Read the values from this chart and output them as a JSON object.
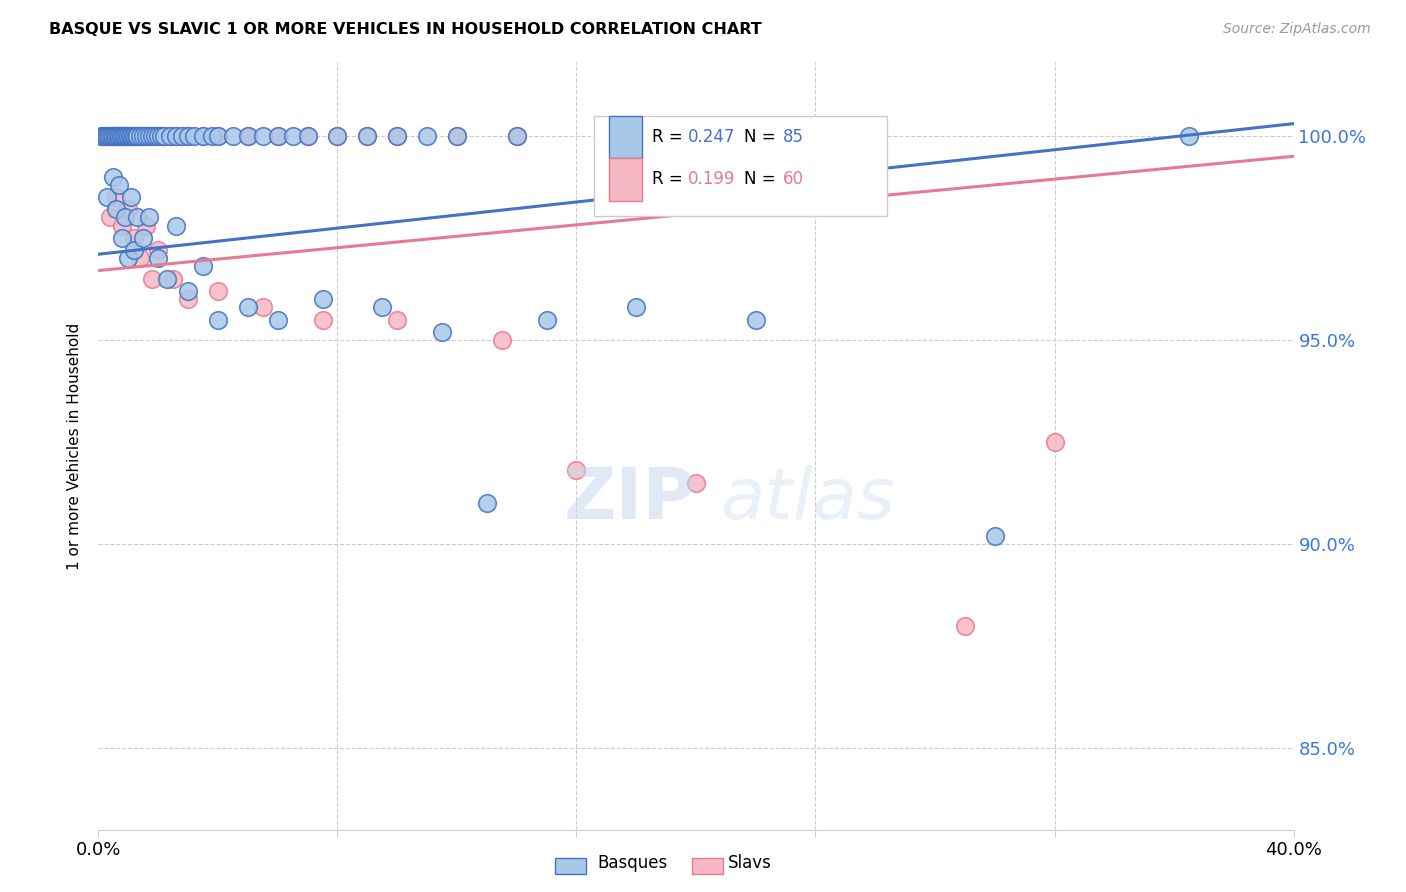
{
  "title": "BASQUE VS SLAVIC 1 OR MORE VEHICLES IN HOUSEHOLD CORRELATION CHART",
  "source": "Source: ZipAtlas.com",
  "ylabel": "1 or more Vehicles in Household",
  "ytick_vals": [
    85.0,
    90.0,
    95.0,
    100.0
  ],
  "xmin": 0.0,
  "xmax": 40.0,
  "ymin": 83.0,
  "ymax": 101.8,
  "legend_blue_r": "0.247",
  "legend_blue_n": "85",
  "legend_pink_r": "0.199",
  "legend_pink_n": "60",
  "blue_color": "#a8c8e8",
  "pink_color": "#f5b8c4",
  "line_blue": "#4472c4",
  "line_pink": "#e87a90",
  "blue_trend_x0": 0.0,
  "blue_trend_y0": 97.1,
  "blue_trend_x1": 40.0,
  "blue_trend_y1": 100.3,
  "pink_trend_x0": 0.0,
  "pink_trend_y0": 96.7,
  "pink_trend_x1": 40.0,
  "pink_trend_y1": 99.5,
  "basques_x": [
    0.1,
    0.15,
    0.2,
    0.25,
    0.3,
    0.35,
    0.4,
    0.45,
    0.5,
    0.55,
    0.6,
    0.65,
    0.7,
    0.75,
    0.8,
    0.85,
    0.9,
    0.95,
    1.0,
    1.05,
    1.1,
    1.15,
    1.2,
    1.25,
    1.3,
    1.4,
    1.5,
    1.6,
    1.7,
    1.8,
    1.9,
    2.0,
    2.1,
    2.2,
    2.4,
    2.6,
    2.8,
    3.0,
    3.2,
    3.5,
    3.8,
    4.0,
    4.5,
    5.0,
    5.5,
    6.0,
    6.5,
    7.0,
    8.0,
    9.0,
    10.0,
    11.0,
    12.0,
    14.0,
    20.0,
    25.0,
    36.5,
    0.3,
    0.5,
    0.6,
    0.7,
    0.8,
    0.9,
    1.0,
    1.1,
    1.2,
    1.3,
    1.5,
    1.7,
    2.0,
    2.3,
    2.6,
    3.0,
    3.5,
    4.0,
    5.0,
    6.0,
    7.5,
    9.5,
    11.5,
    13.0,
    15.0,
    18.0,
    22.0,
    30.0
  ],
  "basques_y": [
    100.0,
    100.0,
    100.0,
    100.0,
    100.0,
    100.0,
    100.0,
    100.0,
    100.0,
    100.0,
    100.0,
    100.0,
    100.0,
    100.0,
    100.0,
    100.0,
    100.0,
    100.0,
    100.0,
    100.0,
    100.0,
    100.0,
    100.0,
    100.0,
    100.0,
    100.0,
    100.0,
    100.0,
    100.0,
    100.0,
    100.0,
    100.0,
    100.0,
    100.0,
    100.0,
    100.0,
    100.0,
    100.0,
    100.0,
    100.0,
    100.0,
    100.0,
    100.0,
    100.0,
    100.0,
    100.0,
    100.0,
    100.0,
    100.0,
    100.0,
    100.0,
    100.0,
    100.0,
    100.0,
    100.0,
    100.0,
    100.0,
    98.5,
    99.0,
    98.2,
    98.8,
    97.5,
    98.0,
    97.0,
    98.5,
    97.2,
    98.0,
    97.5,
    98.0,
    97.0,
    96.5,
    97.8,
    96.2,
    96.8,
    95.5,
    95.8,
    95.5,
    96.0,
    95.8,
    95.2,
    91.0,
    95.5,
    95.8,
    95.5,
    90.2
  ],
  "slavs_x": [
    0.2,
    0.3,
    0.4,
    0.5,
    0.55,
    0.6,
    0.65,
    0.7,
    0.75,
    0.8,
    0.85,
    0.9,
    0.95,
    1.0,
    1.1,
    1.2,
    1.3,
    1.4,
    1.5,
    1.6,
    1.7,
    1.8,
    1.9,
    2.0,
    2.1,
    2.2,
    2.4,
    2.6,
    2.8,
    3.0,
    3.5,
    4.0,
    5.0,
    6.0,
    7.0,
    8.0,
    9.0,
    10.0,
    12.0,
    14.0,
    0.4,
    0.6,
    0.8,
    1.0,
    1.2,
    1.4,
    1.6,
    1.8,
    2.0,
    2.5,
    3.0,
    4.0,
    5.5,
    7.5,
    10.0,
    13.5,
    16.0,
    20.0,
    29.0,
    32.0
  ],
  "slavs_y": [
    100.0,
    100.0,
    100.0,
    100.0,
    100.0,
    100.0,
    100.0,
    100.0,
    100.0,
    100.0,
    100.0,
    100.0,
    100.0,
    100.0,
    100.0,
    100.0,
    100.0,
    100.0,
    100.0,
    100.0,
    100.0,
    100.0,
    100.0,
    100.0,
    100.0,
    100.0,
    100.0,
    100.0,
    100.0,
    100.0,
    100.0,
    100.0,
    100.0,
    100.0,
    100.0,
    100.0,
    100.0,
    100.0,
    100.0,
    100.0,
    98.0,
    98.5,
    97.8,
    98.2,
    97.5,
    97.0,
    97.8,
    96.5,
    97.2,
    96.5,
    96.0,
    96.2,
    95.8,
    95.5,
    95.5,
    95.0,
    91.8,
    91.5,
    88.0,
    92.5
  ]
}
